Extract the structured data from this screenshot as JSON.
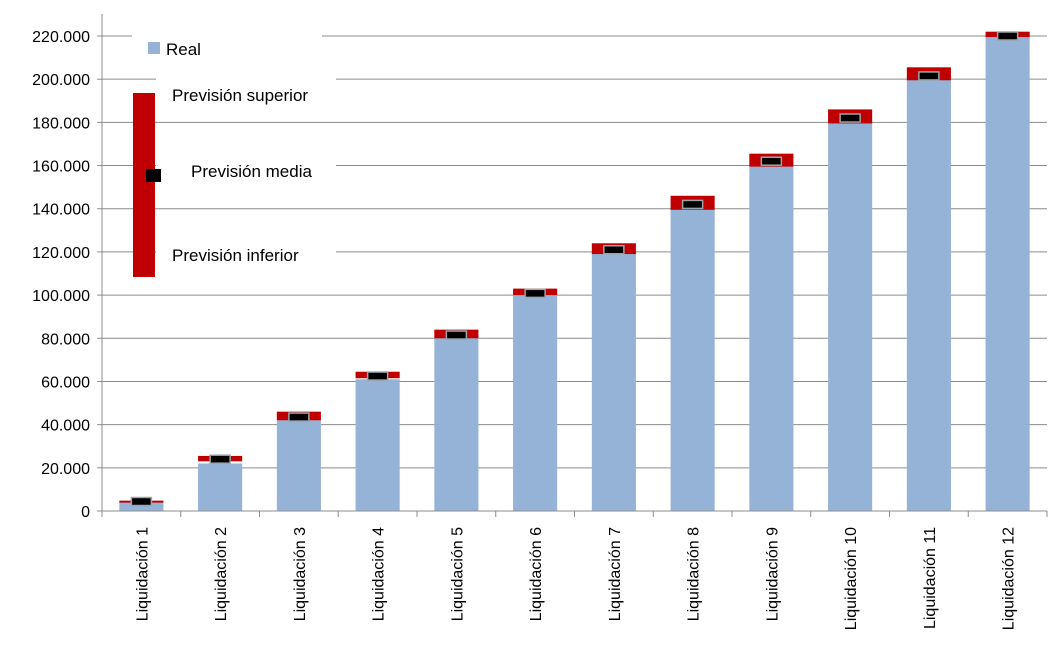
{
  "chart_data": {
    "type": "bar",
    "categories": [
      "Liquidación 1",
      "Liquidación 2",
      "Liquidación 3",
      "Liquidación 4",
      "Liquidación 5",
      "Liquidación 6",
      "Liquidación 7",
      "Liquidación 8",
      "Liquidación 9",
      "Liquidación 10",
      "Liquidación 11",
      "Liquidación 12"
    ],
    "series": [
      {
        "name": "Real",
        "values": [
          4000,
          22000,
          42000,
          61000,
          80000,
          100000,
          120000,
          140000,
          160000,
          180000,
          200000,
          220000
        ],
        "color": "#95b3d7"
      },
      {
        "name": "Previsión inferior",
        "values": [
          4000,
          23000,
          42000,
          61500,
          80000,
          100000,
          119000,
          139500,
          159500,
          179500,
          199500,
          219500
        ],
        "color": "#c00000"
      },
      {
        "name": "Previsión superior",
        "values": [
          4800,
          25500,
          46000,
          64500,
          84000,
          103000,
          124000,
          146000,
          165500,
          186000,
          205500,
          222000
        ],
        "color": "#c00000"
      },
      {
        "name": "Previsión media",
        "values": [
          4400,
          24000,
          43500,
          62500,
          81500,
          100800,
          121000,
          142000,
          162000,
          182000,
          201500,
          220000
        ],
        "color": "#000000"
      }
    ],
    "y_ticks": [
      "0",
      "20.000",
      "40.000",
      "60.000",
      "80.000",
      "100.000",
      "120.000",
      "140.000",
      "160.000",
      "180.000",
      "200.000",
      "220.000"
    ],
    "ylim": [
      0,
      220000
    ],
    "grid": true,
    "legend_position": "top-left"
  },
  "legend": {
    "real": "Real",
    "superior": "Previsión superior",
    "media": "Previsión media",
    "inferior": "Previsión inferior"
  }
}
